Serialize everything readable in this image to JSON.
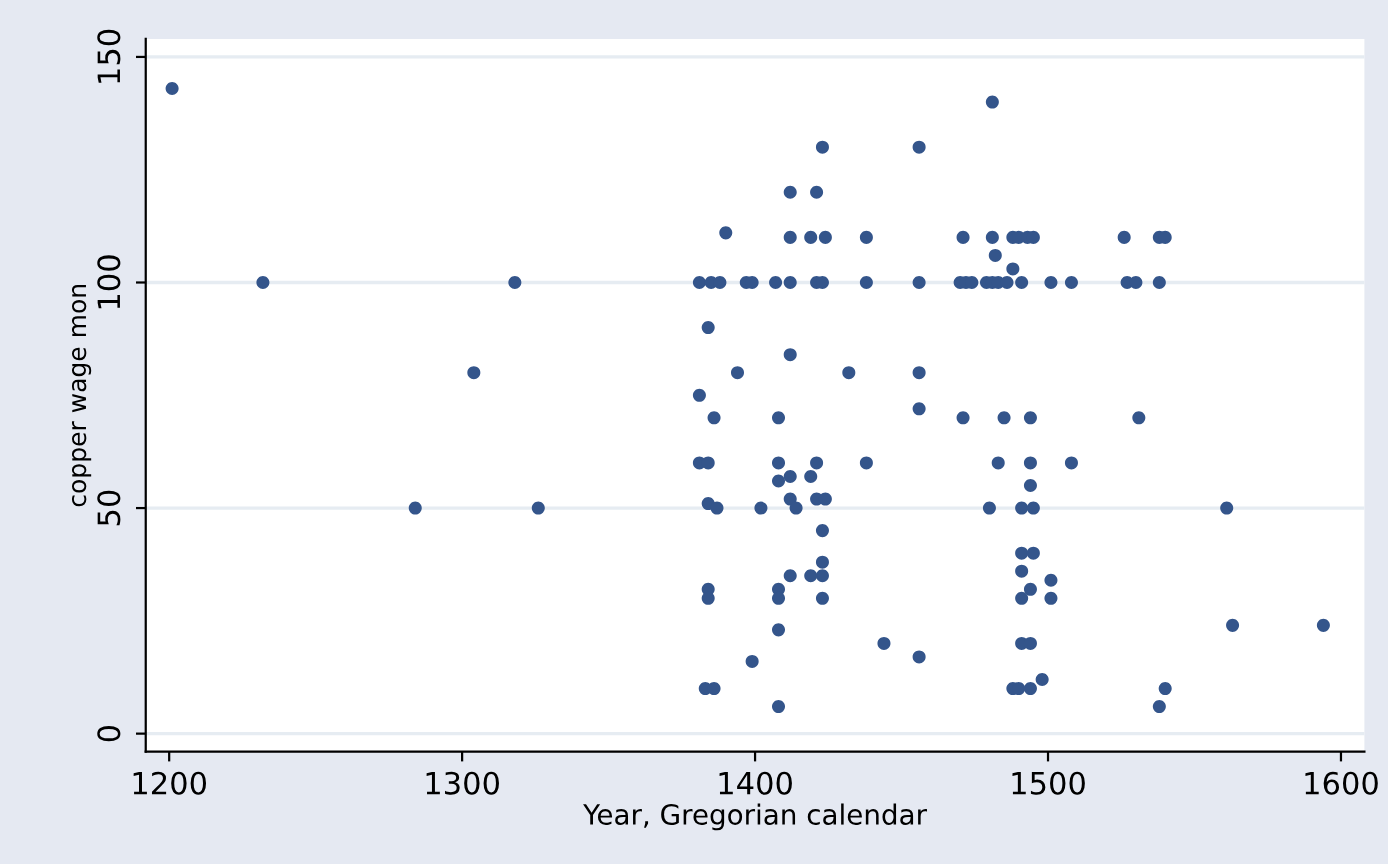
{
  "chart_data": {
    "type": "scatter",
    "xlabel": "Year, Gregorian calendar",
    "ylabel": "copper wage mon",
    "xlim": [
      1192,
      1608
    ],
    "ylim": [
      -4,
      154
    ],
    "xticks": [
      1200,
      1300,
      1400,
      1500,
      1600
    ],
    "yticks": [
      0,
      50,
      100,
      150
    ],
    "grid": "y",
    "marker": "circle",
    "series": [
      {
        "color": "#34558b",
        "x": [
          1201,
          1232,
          1284,
          1304,
          1318,
          1326,
          1423,
          1412,
          1421,
          1390,
          1412,
          1419,
          1424,
          1438,
          1381,
          1385,
          1388,
          1397,
          1399,
          1407,
          1412,
          1421,
          1423,
          1438,
          1384,
          1412,
          1394,
          1432,
          1381,
          1386,
          1408,
          1381,
          1384,
          1408,
          1421,
          1438,
          1408,
          1412,
          1419,
          1384,
          1387,
          1402,
          1412,
          1414,
          1421,
          1424,
          1423,
          1423,
          1423,
          1412,
          1419,
          1384,
          1384,
          1408,
          1408,
          1423,
          1408,
          1444,
          1399,
          1383,
          1386,
          1408,
          1456,
          1456,
          1456,
          1456,
          1456,
          1471,
          1481,
          1488,
          1490,
          1493,
          1495,
          1482,
          1488,
          1470,
          1472,
          1474,
          1479,
          1481,
          1483,
          1486,
          1491,
          1501,
          1508,
          1471,
          1485,
          1494,
          1483,
          1494,
          1508,
          1494,
          1480,
          1491,
          1495,
          1491,
          1495,
          1491,
          1494,
          1501,
          1501,
          1491,
          1491,
          1494,
          1488,
          1490,
          1494,
          1498,
          1526,
          1538,
          1540,
          1527,
          1530,
          1538,
          1531,
          1561,
          1563,
          1594,
          1540,
          1538,
          1481
        ],
        "values": [
          143,
          100,
          50,
          80,
          100,
          50,
          130,
          120,
          120,
          111,
          110,
          110,
          110,
          110,
          100,
          100,
          100,
          100,
          100,
          100,
          100,
          100,
          100,
          100,
          90,
          84,
          80,
          80,
          75,
          70,
          70,
          60,
          60,
          60,
          60,
          60,
          56,
          57,
          57,
          51,
          50,
          50,
          52,
          50,
          52,
          52,
          45,
          38,
          35,
          35,
          35,
          32,
          30,
          32,
          30,
          30,
          23,
          20,
          16,
          10,
          10,
          6,
          130,
          100,
          80,
          72,
          17,
          110,
          110,
          110,
          110,
          110,
          110,
          106,
          103,
          100,
          100,
          100,
          100,
          100,
          100,
          100,
          100,
          100,
          100,
          70,
          70,
          70,
          60,
          60,
          60,
          55,
          50,
          50,
          50,
          40,
          40,
          36,
          32,
          34,
          30,
          30,
          20,
          20,
          10,
          10,
          10,
          12,
          110,
          110,
          110,
          100,
          100,
          100,
          70,
          50,
          24,
          24,
          10,
          6,
          140
        ]
      }
    ]
  }
}
